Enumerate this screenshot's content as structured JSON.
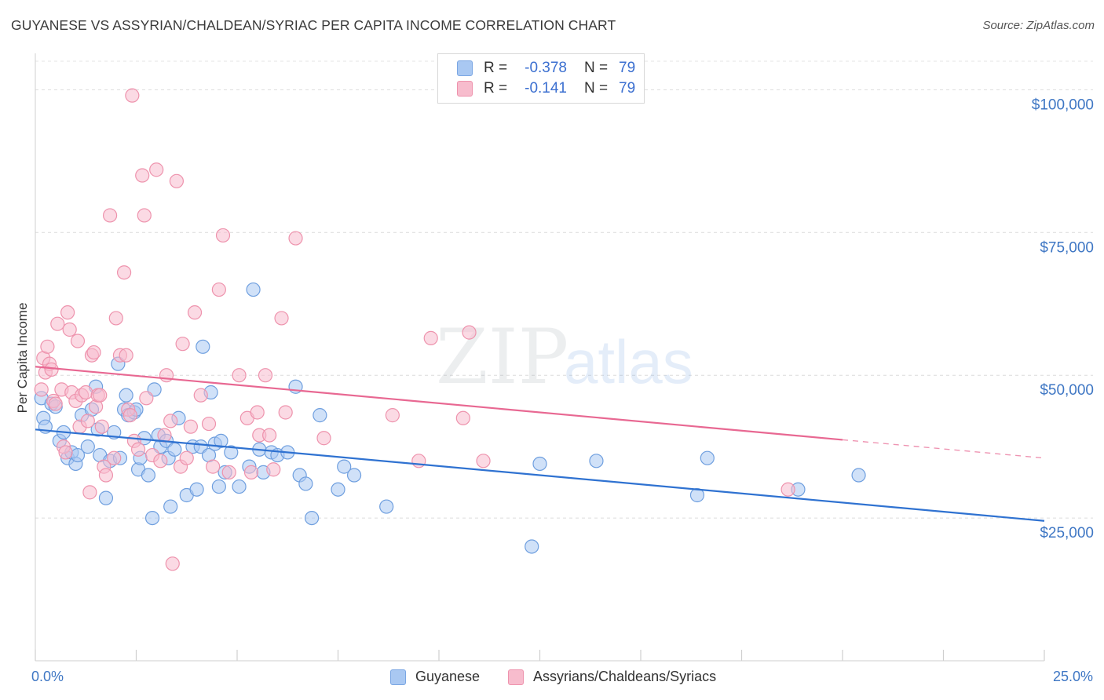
{
  "header": {
    "title": "GUYANESE VS ASSYRIAN/CHALDEAN/SYRIAC PER CAPITA INCOME CORRELATION CHART",
    "source": "Source: ZipAtlas.com"
  },
  "watermark": {
    "zip": "ZIP",
    "atlas": "atlas"
  },
  "legend": {
    "r_label": "R =",
    "n_label": "N =",
    "rows": [
      {
        "r": "-0.378",
        "n": "79",
        "color": "#a9c8f2",
        "border": "#7aa6e3"
      },
      {
        "r": "-0.141",
        "n": "79",
        "color": "#f7bccd",
        "border": "#ee93ad"
      }
    ]
  },
  "chart_data": {
    "type": "scatter",
    "ylabel": "Per Capita Income",
    "xlim": [
      0,
      25
    ],
    "ylim": [
      0,
      105000
    ],
    "x_tick_labels": {
      "min": "0.0%",
      "max": "25.0%"
    },
    "y_ticks": [
      {
        "value": 25000,
        "label": "$25,000"
      },
      {
        "value": 50000,
        "label": "$50,000"
      },
      {
        "value": 75000,
        "label": "$75,000"
      },
      {
        "value": 100000,
        "label": "$100,000"
      }
    ],
    "grid": "dashed horizontal",
    "series": [
      {
        "name": "Guyanese",
        "color": "#a9c8f2",
        "stroke": "#6f9fdf",
        "line_color": "#2f72d1",
        "trend": {
          "x0": 0,
          "y0": 40500,
          "x1": 25,
          "y1": 24500,
          "solid_until": 25
        },
        "points": [
          [
            0.15,
            46000
          ],
          [
            0.2,
            42500
          ],
          [
            0.25,
            41000
          ],
          [
            0.4,
            45000
          ],
          [
            0.5,
            44500
          ],
          [
            0.6,
            38500
          ],
          [
            0.7,
            40000
          ],
          [
            0.8,
            35500
          ],
          [
            0.9,
            36500
          ],
          [
            1.0,
            34500
          ],
          [
            1.05,
            36000
          ],
          [
            1.15,
            43000
          ],
          [
            1.3,
            37500
          ],
          [
            1.4,
            44000
          ],
          [
            1.5,
            48000
          ],
          [
            1.55,
            40500
          ],
          [
            1.6,
            36000
          ],
          [
            1.75,
            28500
          ],
          [
            1.85,
            35000
          ],
          [
            1.95,
            40000
          ],
          [
            2.05,
            52000
          ],
          [
            2.1,
            35500
          ],
          [
            2.2,
            44000
          ],
          [
            2.25,
            46500
          ],
          [
            2.3,
            43000
          ],
          [
            2.45,
            43500
          ],
          [
            2.5,
            44000
          ],
          [
            2.55,
            33500
          ],
          [
            2.6,
            35500
          ],
          [
            2.7,
            39000
          ],
          [
            2.8,
            32500
          ],
          [
            2.9,
            25000
          ],
          [
            2.95,
            47500
          ],
          [
            3.05,
            39500
          ],
          [
            3.1,
            37500
          ],
          [
            3.25,
            38500
          ],
          [
            3.3,
            35500
          ],
          [
            3.35,
            27000
          ],
          [
            3.45,
            37000
          ],
          [
            3.55,
            42500
          ],
          [
            3.75,
            29000
          ],
          [
            3.9,
            37500
          ],
          [
            4.0,
            30000
          ],
          [
            4.1,
            37500
          ],
          [
            4.15,
            55000
          ],
          [
            4.3,
            36000
          ],
          [
            4.35,
            47000
          ],
          [
            4.45,
            38000
          ],
          [
            4.55,
            30500
          ],
          [
            4.6,
            38500
          ],
          [
            4.7,
            33000
          ],
          [
            4.85,
            36500
          ],
          [
            5.05,
            30500
          ],
          [
            5.3,
            34000
          ],
          [
            5.4,
            65000
          ],
          [
            5.55,
            37000
          ],
          [
            5.65,
            33000
          ],
          [
            5.85,
            36500
          ],
          [
            6.0,
            36000
          ],
          [
            6.25,
            36500
          ],
          [
            6.45,
            48000
          ],
          [
            6.55,
            32500
          ],
          [
            6.7,
            31000
          ],
          [
            6.85,
            25000
          ],
          [
            7.05,
            43000
          ],
          [
            7.5,
            30000
          ],
          [
            7.65,
            34000
          ],
          [
            7.9,
            32500
          ],
          [
            8.7,
            27000
          ],
          [
            12.3,
            20000
          ],
          [
            12.5,
            34500
          ],
          [
            13.9,
            35000
          ],
          [
            16.4,
            29000
          ],
          [
            16.65,
            35500
          ],
          [
            18.9,
            30000
          ],
          [
            20.4,
            32500
          ]
        ]
      },
      {
        "name": "Assyrians/Chaldeans/Syriacs",
        "color": "#f7bccd",
        "stroke": "#ee93ad",
        "line_color": "#e86892",
        "trend": {
          "x0": 0,
          "y0": 51500,
          "x1": 25,
          "y1": 35500,
          "solid_until": 20
        },
        "points": [
          [
            0.15,
            47500
          ],
          [
            0.2,
            53000
          ],
          [
            0.25,
            50500
          ],
          [
            0.3,
            55000
          ],
          [
            0.35,
            52000
          ],
          [
            0.4,
            51000
          ],
          [
            0.45,
            45500
          ],
          [
            0.5,
            45000
          ],
          [
            0.55,
            59000
          ],
          [
            0.65,
            47500
          ],
          [
            0.7,
            37500
          ],
          [
            0.75,
            36500
          ],
          [
            0.8,
            61000
          ],
          [
            0.85,
            58000
          ],
          [
            0.9,
            47000
          ],
          [
            1.0,
            45500
          ],
          [
            1.05,
            56000
          ],
          [
            1.1,
            41000
          ],
          [
            1.15,
            46500
          ],
          [
            1.25,
            47000
          ],
          [
            1.3,
            42000
          ],
          [
            1.35,
            29500
          ],
          [
            1.4,
            53500
          ],
          [
            1.45,
            54000
          ],
          [
            1.5,
            44500
          ],
          [
            1.55,
            46500
          ],
          [
            1.6,
            46500
          ],
          [
            1.65,
            41000
          ],
          [
            1.7,
            34000
          ],
          [
            1.75,
            32500
          ],
          [
            1.85,
            78000
          ],
          [
            1.95,
            35500
          ],
          [
            2.0,
            60000
          ],
          [
            2.1,
            53500
          ],
          [
            2.2,
            68000
          ],
          [
            2.25,
            53500
          ],
          [
            2.3,
            44000
          ],
          [
            2.35,
            43000
          ],
          [
            2.45,
            38500
          ],
          [
            2.55,
            37000
          ],
          [
            2.65,
            85000
          ],
          [
            2.7,
            78000
          ],
          [
            2.75,
            46000
          ],
          [
            2.9,
            36000
          ],
          [
            3.0,
            86000
          ],
          [
            3.1,
            35000
          ],
          [
            3.2,
            39500
          ],
          [
            3.25,
            50000
          ],
          [
            3.35,
            42000
          ],
          [
            3.4,
            17000
          ],
          [
            3.5,
            84000
          ],
          [
            3.6,
            34000
          ],
          [
            3.65,
            55500
          ],
          [
            3.75,
            35500
          ],
          [
            3.85,
            41000
          ],
          [
            3.95,
            61000
          ],
          [
            4.1,
            46500
          ],
          [
            4.3,
            41500
          ],
          [
            4.4,
            34000
          ],
          [
            4.55,
            65000
          ],
          [
            4.65,
            74500
          ],
          [
            4.8,
            33000
          ],
          [
            5.05,
            50000
          ],
          [
            5.25,
            42500
          ],
          [
            5.35,
            33000
          ],
          [
            5.5,
            43500
          ],
          [
            5.55,
            39500
          ],
          [
            5.7,
            50000
          ],
          [
            5.8,
            39500
          ],
          [
            5.9,
            33500
          ],
          [
            6.1,
            60000
          ],
          [
            6.2,
            43500
          ],
          [
            6.45,
            74000
          ],
          [
            7.15,
            39000
          ],
          [
            8.85,
            43000
          ],
          [
            9.5,
            35000
          ],
          [
            9.8,
            56500
          ],
          [
            10.6,
            42500
          ],
          [
            10.75,
            57500
          ]
        ]
      }
    ],
    "extra_points": [
      {
        "series": 1,
        "x": 2.4,
        "y": 99000
      },
      {
        "series": 1,
        "x": 11.1,
        "y": 35000
      },
      {
        "series": 1,
        "x": 18.65,
        "y": 30000
      }
    ]
  }
}
